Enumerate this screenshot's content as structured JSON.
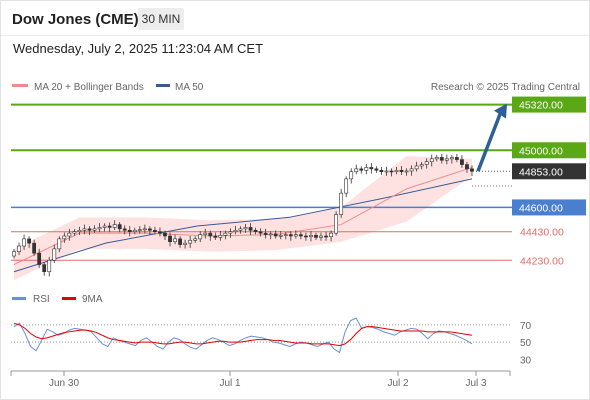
{
  "header": {
    "instrument": "Dow Jones (CME)",
    "interval": "30 MIN",
    "datetime": "Wednesday, July 2, 2025 11:23:04 AM CET"
  },
  "legend": {
    "ma20_label": "MA 20 + Bollinger Bands",
    "ma50_label": "MA 50",
    "credit": "Research © 2025 Trading Central",
    "rsi_label": "RSI",
    "rsi_ma_label": "9MA"
  },
  "colors": {
    "resistance": "#5aa816",
    "pivot": "#4a7fd0",
    "support": "#e26a6a",
    "last_price": "#333333",
    "ma20": "#f08a8a",
    "bollinger": "#fdd8d8",
    "ma50": "#3a5a96",
    "rsi": "#6a8fd6",
    "rsi_ma": "#e60000",
    "arrow": "#2e5f96"
  },
  "chart_data": [
    {
      "type": "candlestick",
      "x_labels": [
        "Jun 30",
        "Jul 1",
        "Jul 2",
        "Jul 3"
      ],
      "ylim": [
        44050,
        45380
      ],
      "levels": [
        {
          "label": "45320.00",
          "value": 45320,
          "kind": "resistance"
        },
        {
          "label": "45000.00",
          "value": 45000,
          "kind": "resistance"
        },
        {
          "label": "44853.00",
          "value": 44853,
          "kind": "last"
        },
        {
          "label": "44600.00",
          "value": 44600,
          "kind": "pivot"
        },
        {
          "label": "44430.00",
          "value": 44430,
          "kind": "support"
        },
        {
          "label": "44230.00",
          "value": 44230,
          "kind": "support"
        }
      ],
      "close": [
        44290,
        44330,
        44380,
        44350,
        44280,
        44200,
        44150,
        44230,
        44310,
        44380,
        44400,
        44420,
        44430,
        44440,
        44450,
        44440,
        44450,
        44460,
        44470,
        44460,
        44480,
        44450,
        44440,
        44430,
        44440,
        44445,
        44450,
        44440,
        44430,
        44420,
        44400,
        44360,
        44380,
        44340,
        44350,
        44370,
        44380,
        44410,
        44420,
        44400,
        44390,
        44405,
        44420,
        44430,
        44440,
        44450,
        44460,
        44440,
        44430,
        44420,
        44410,
        44415,
        44400,
        44405,
        44410,
        44400,
        44410,
        44400,
        44395,
        44405,
        44390,
        44400,
        44395,
        44420,
        44550,
        44700,
        44800,
        44850,
        44870,
        44860,
        44880,
        44870,
        44860,
        44850,
        44855,
        44850,
        44860,
        44850,
        44855,
        44870,
        44890,
        44900,
        44920,
        44940,
        44950,
        44930,
        44940,
        44950,
        44935,
        44900,
        44870,
        44853
      ],
      "series": [
        {
          "name": "MA 50",
          "values": [
            44150,
            44350,
            44470,
            44530,
            44660,
            44800
          ]
        },
        {
          "name": "MA 20 + Bollinger Bands",
          "values": [
            44200,
            44420,
            44420,
            44400,
            44410,
            44480,
            44730,
            44880
          ]
        }
      ]
    },
    {
      "type": "line",
      "ylim": [
        20,
        85
      ],
      "y_ticks": [
        70,
        50,
        30
      ],
      "series": [
        {
          "name": "RSI",
          "values": [
            68,
            72,
            60,
            45,
            40,
            52,
            65,
            62,
            58,
            60,
            64,
            66,
            65,
            64,
            62,
            55,
            48,
            45,
            55,
            52,
            50,
            48,
            46,
            52,
            55,
            50,
            45,
            42,
            50,
            55,
            53,
            48,
            44,
            42,
            47,
            52,
            55,
            53,
            50,
            46,
            48,
            52,
            55,
            57,
            56,
            55,
            53,
            50,
            49,
            47,
            45,
            48,
            50,
            49,
            47,
            45,
            48,
            50,
            42,
            38,
            62,
            75,
            78,
            66,
            68,
            67,
            65,
            62,
            60,
            58,
            62,
            64,
            66,
            65,
            60,
            54,
            60,
            63,
            62,
            60,
            58,
            55,
            52,
            48
          ]
        },
        {
          "name": "9MA",
          "values": [
            72,
            70,
            66,
            60,
            56,
            54,
            55,
            57,
            59,
            61,
            62,
            63,
            64,
            64,
            63,
            61,
            58,
            55,
            53,
            52,
            51,
            50,
            49,
            50,
            50,
            50,
            49,
            48,
            48,
            49,
            50,
            50,
            49,
            48,
            48,
            49,
            50,
            51,
            51,
            50,
            50,
            50,
            51,
            52,
            53,
            53,
            53,
            52,
            52,
            51,
            50,
            49,
            49,
            49,
            48,
            48,
            48,
            48,
            47,
            46,
            48,
            53,
            60,
            66,
            68,
            68,
            67,
            66,
            65,
            64,
            63,
            63,
            63,
            63,
            63,
            62,
            62,
            62,
            62,
            62,
            61,
            60,
            59,
            58
          ]
        }
      ]
    }
  ]
}
